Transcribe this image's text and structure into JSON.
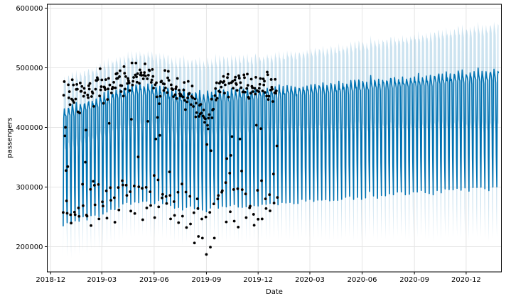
{
  "chart_data": {
    "type": "line",
    "subtype": "forecast_with_uncertainty_band_and_observed_scatter",
    "title": "",
    "xlabel": "Date",
    "ylabel": "passengers",
    "grid": true,
    "legend_position": "none",
    "xlim": [
      "2018-11-25",
      "2021-02-01"
    ],
    "ylim": [
      157700,
      606500
    ],
    "colors": {
      "spine": "#000000",
      "grid": "#e5e5e5",
      "tick_label": "#000000",
      "forecast_line": "#0072B2",
      "uncertainty_band": "#0072B2",
      "observed_points": "#000000"
    },
    "y_axis": {
      "ticks": [
        200000,
        300000,
        400000,
        500000,
        600000
      ]
    },
    "x_axis": {
      "ticks": [
        {
          "label": "2018-12",
          "date": "2018-12-01"
        },
        {
          "label": "2019-03",
          "date": "2019-03-01"
        },
        {
          "label": "2019-06",
          "date": "2019-06-01"
        },
        {
          "label": "2019-09",
          "date": "2019-09-01"
        },
        {
          "label": "2019-12",
          "date": "2019-12-01"
        },
        {
          "label": "2020-03",
          "date": "2020-03-01"
        },
        {
          "label": "2020-06",
          "date": "2020-06-01"
        },
        {
          "label": "2020-09",
          "date": "2020-09-01"
        },
        {
          "label": "2020-12",
          "date": "2020-12-01"
        }
      ]
    },
    "forecast": {
      "color": "#0072B2",
      "start": "2018-12-23",
      "end": "2021-01-27",
      "trend": [
        [
          "2018-12-23",
          422000
        ],
        [
          "2019-02-01",
          433000
        ],
        [
          "2019-03-01",
          442000
        ],
        [
          "2019-04-01",
          453000
        ],
        [
          "2019-05-01",
          461000
        ],
        [
          "2019-06-01",
          459000
        ],
        [
          "2019-07-01",
          451000
        ],
        [
          "2019-08-01",
          449000
        ],
        [
          "2019-09-01",
          447000
        ],
        [
          "2019-10-01",
          452000
        ],
        [
          "2019-11-01",
          453500
        ],
        [
          "2019-12-01",
          455000
        ],
        [
          "2020-01-01",
          456500
        ],
        [
          "2020-06-01",
          468000
        ],
        [
          "2021-01-27",
          486000
        ]
      ],
      "weekly": {
        "0": -185000,
        "1": -5000,
        "2": 10000,
        "3": 4000,
        "4": 0,
        "5": -6000,
        "6": -130000
      },
      "noise_sd": 2500
    },
    "band": {
      "color": "#0072B2",
      "opacity": 0.2,
      "sigma_upper": [
        [
          "2018-12-23",
          55000
        ],
        [
          "2020-01-04",
          58000
        ],
        [
          "2021-01-27",
          80000
        ]
      ],
      "sigma_lower": [
        [
          "2018-12-23",
          57000
        ],
        [
          "2020-01-04",
          60000
        ],
        [
          "2021-01-27",
          86000
        ]
      ]
    },
    "observed": {
      "color": "#000000",
      "start": "2018-12-23",
      "end": "2020-01-04",
      "trend": [
        [
          "2018-12-23",
          447000
        ],
        [
          "2019-02-01",
          458000
        ],
        [
          "2019-03-01",
          466000
        ],
        [
          "2019-04-01",
          476000
        ],
        [
          "2019-05-01",
          484000
        ],
        [
          "2019-05-20",
          489000
        ],
        [
          "2019-06-10",
          471000
        ],
        [
          "2019-07-01",
          464000
        ],
        [
          "2019-08-05",
          453000
        ],
        [
          "2019-08-25",
          420000
        ],
        [
          "2019-09-03",
          391000
        ],
        [
          "2019-09-10",
          428000
        ],
        [
          "2019-09-20",
          470000
        ],
        [
          "2019-10-10",
          476000
        ],
        [
          "2019-11-01",
          466000
        ],
        [
          "2019-12-01",
          462000
        ],
        [
          "2020-01-04",
          464000
        ]
      ],
      "weekly": {
        "0": -212000,
        "1": -4000,
        "2": 8000,
        "3": 5000,
        "4": 2000,
        "5": -4000,
        "6": -172000
      },
      "noise_weekday": 11000,
      "noise_weekend": 16000,
      "outlier_prob": 0.045,
      "outlier_shift": -118000,
      "outlier_sd": 18000,
      "outlier2_prob": 0.03,
      "outlier2_shift": -60000
    },
    "render_seed": 11
  }
}
